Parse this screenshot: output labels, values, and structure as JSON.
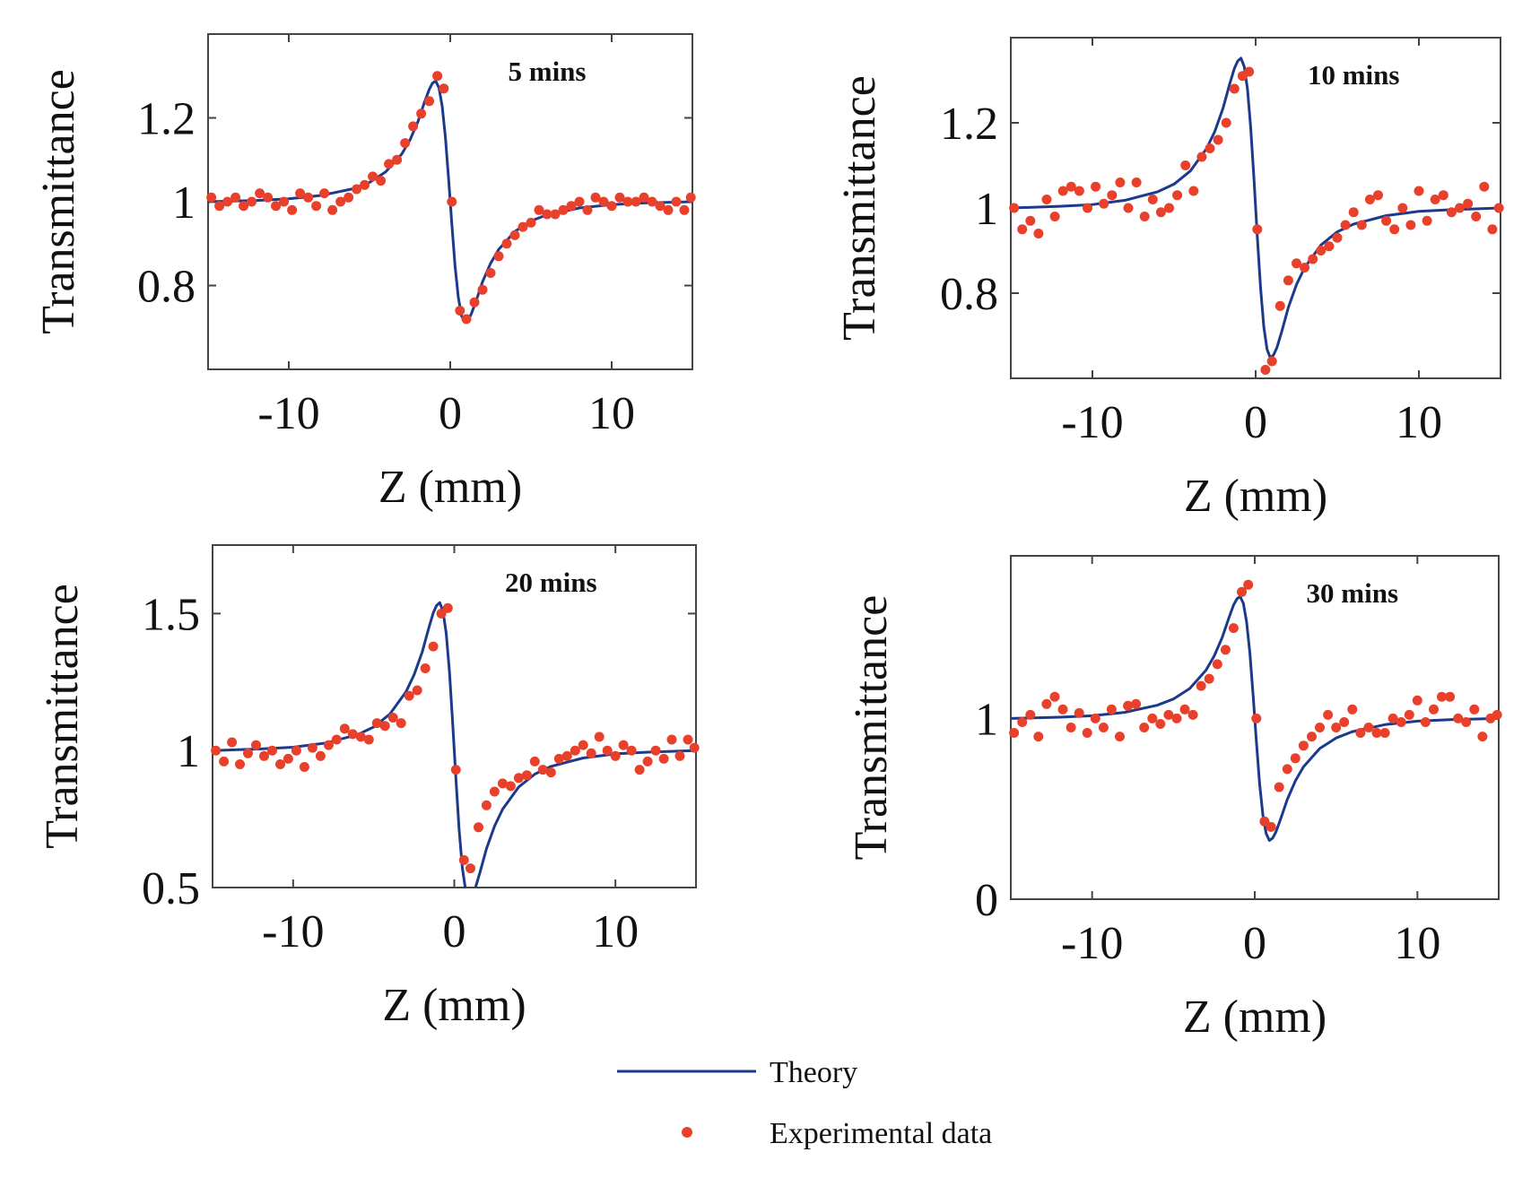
{
  "chart_data": [
    {
      "type": "line",
      "title": "5 mins",
      "xlabel": "Z (mm)",
      "ylabel": "Transmittance",
      "xlim": [
        -15,
        15
      ],
      "ylim": [
        0.6,
        1.4
      ],
      "xticks": [
        -10,
        0,
        10
      ],
      "xtick_labels": [
        "-10",
        "0",
        "10"
      ],
      "yticks": [
        0.8,
        1.0,
        1.2
      ],
      "ytick_labels": [
        "0.8",
        "1",
        "1.2"
      ],
      "grid": false,
      "series": [
        {
          "name": "Theory",
          "kind": "line",
          "color": "#1c3a8c",
          "x": [
            -15,
            -12,
            -10,
            -8,
            -6,
            -5,
            -4,
            -3,
            -2.5,
            -2,
            -1.6,
            -1.3,
            -1.1,
            -0.9,
            -0.7,
            -0.5,
            -0.3,
            -0.1,
            0.1,
            0.3,
            0.5,
            0.7,
            0.9,
            1.1,
            1.3,
            1.6,
            2,
            2.5,
            3,
            4,
            5,
            6,
            8,
            10,
            12,
            15
          ],
          "y": [
            1.0,
            1.003,
            1.007,
            1.015,
            1.031,
            1.046,
            1.071,
            1.114,
            1.147,
            1.191,
            1.237,
            1.268,
            1.283,
            1.288,
            1.272,
            1.228,
            1.154,
            1.054,
            0.946,
            0.846,
            0.772,
            0.728,
            0.712,
            0.717,
            0.732,
            0.763,
            0.809,
            0.853,
            0.886,
            0.929,
            0.954,
            0.969,
            0.985,
            0.993,
            0.997,
            1.0
          ]
        },
        {
          "name": "Experimental data",
          "kind": "scatter",
          "color": "#e8402a",
          "x": [
            -14.8,
            -14.3,
            -13.8,
            -13.3,
            -12.8,
            -12.3,
            -11.8,
            -11.3,
            -10.8,
            -10.3,
            -9.8,
            -9.3,
            -8.8,
            -8.3,
            -7.8,
            -7.3,
            -6.8,
            -6.3,
            -5.8,
            -5.3,
            -4.8,
            -4.3,
            -3.8,
            -3.3,
            -2.8,
            -2.3,
            -1.8,
            -1.3,
            -0.8,
            -0.4,
            0.1,
            0.6,
            1.0,
            1.5,
            2.0,
            2.5,
            3.0,
            3.5,
            4.0,
            4.5,
            5.0,
            5.5,
            6.0,
            6.5,
            7.0,
            7.5,
            8.0,
            8.5,
            9.0,
            9.5,
            10.0,
            10.5,
            11.0,
            11.5,
            12.0,
            12.5,
            13.0,
            13.5,
            14.0,
            14.5,
            14.9
          ],
          "y": [
            1.01,
            0.99,
            1.0,
            1.01,
            0.99,
            1.0,
            1.02,
            1.01,
            0.99,
            1.0,
            0.98,
            1.02,
            1.01,
            0.99,
            1.02,
            0.98,
            1.0,
            1.01,
            1.03,
            1.04,
            1.06,
            1.05,
            1.09,
            1.1,
            1.14,
            1.18,
            1.21,
            1.24,
            1.3,
            1.27,
            1.0,
            0.74,
            0.72,
            0.76,
            0.79,
            0.83,
            0.87,
            0.9,
            0.92,
            0.94,
            0.95,
            0.98,
            0.97,
            0.97,
            0.98,
            0.99,
            1.0,
            0.98,
            1.01,
            1.0,
            0.99,
            1.01,
            1.0,
            1.0,
            1.01,
            1.0,
            0.99,
            0.98,
            1.0,
            0.98,
            1.01
          ]
        }
      ]
    },
    {
      "type": "line",
      "title": "10 mins",
      "xlabel": "Z (mm)",
      "ylabel": "Transmittance",
      "xlim": [
        -15,
        15
      ],
      "ylim": [
        0.6,
        1.4
      ],
      "xticks": [
        -10,
        0,
        10
      ],
      "xtick_labels": [
        "-10",
        "0",
        "10"
      ],
      "yticks": [
        0.8,
        1.0,
        1.2
      ],
      "ytick_labels": [
        "0.8",
        "1",
        "1.2"
      ],
      "grid": false,
      "series": [
        {
          "name": "Theory",
          "kind": "line",
          "color": "#1c3a8c",
          "x": [
            -15,
            -12,
            -10,
            -8,
            -6,
            -5,
            -4,
            -3,
            -2.5,
            -2,
            -1.6,
            -1.3,
            -1.1,
            -0.9,
            -0.7,
            -0.5,
            -0.3,
            -0.1,
            0.1,
            0.3,
            0.5,
            0.7,
            0.9,
            1.1,
            1.3,
            1.6,
            2,
            2.5,
            3,
            4,
            5,
            6,
            8,
            10,
            12,
            15
          ],
          "y": [
            1.0,
            1.004,
            1.008,
            1.018,
            1.038,
            1.056,
            1.087,
            1.14,
            1.18,
            1.234,
            1.29,
            1.328,
            1.345,
            1.352,
            1.332,
            1.279,
            1.188,
            1.066,
            0.934,
            0.812,
            0.721,
            0.668,
            0.648,
            0.655,
            0.672,
            0.71,
            0.766,
            0.82,
            0.86,
            0.913,
            0.944,
            0.962,
            0.982,
            0.992,
            0.996,
            1.0
          ]
        },
        {
          "name": "Experimental data",
          "kind": "scatter",
          "color": "#e8402a",
          "x": [
            -14.8,
            -14.3,
            -13.8,
            -13.3,
            -12.8,
            -12.3,
            -11.8,
            -11.3,
            -10.8,
            -10.3,
            -9.8,
            -9.3,
            -8.8,
            -8.3,
            -7.8,
            -7.3,
            -6.8,
            -6.3,
            -5.8,
            -5.3,
            -4.8,
            -4.3,
            -3.8,
            -3.3,
            -2.8,
            -2.3,
            -1.8,
            -1.3,
            -0.8,
            -0.4,
            0.1,
            0.6,
            1.0,
            1.5,
            2.0,
            2.5,
            3.0,
            3.5,
            4.0,
            4.5,
            5.0,
            5.5,
            6.0,
            6.5,
            7.0,
            7.5,
            8.0,
            8.5,
            9.0,
            9.5,
            10.0,
            10.5,
            11.0,
            11.5,
            12.0,
            12.5,
            13.0,
            13.5,
            14.0,
            14.5,
            14.9
          ],
          "y": [
            1.0,
            0.95,
            0.97,
            0.94,
            1.02,
            0.98,
            1.04,
            1.05,
            1.04,
            1.0,
            1.05,
            1.01,
            1.03,
            1.06,
            1.0,
            1.06,
            0.98,
            1.02,
            0.99,
            1.0,
            1.03,
            1.1,
            1.04,
            1.12,
            1.14,
            1.16,
            1.2,
            1.28,
            1.31,
            1.32,
            0.95,
            0.62,
            0.64,
            0.77,
            0.83,
            0.87,
            0.86,
            0.88,
            0.9,
            0.91,
            0.93,
            0.96,
            0.99,
            0.96,
            1.02,
            1.03,
            0.97,
            0.95,
            1.0,
            0.96,
            1.04,
            0.97,
            1.02,
            1.03,
            0.99,
            1.0,
            1.01,
            0.98,
            1.05,
            0.95,
            1.0
          ]
        }
      ]
    },
    {
      "type": "line",
      "title": "20 mins",
      "xlabel": "Z (mm)",
      "ylabel": "Transmittance",
      "xlim": [
        -15,
        15
      ],
      "ylim": [
        0.5,
        1.75
      ],
      "xticks": [
        -10,
        0,
        10
      ],
      "xtick_labels": [
        "-10",
        "0",
        "10"
      ],
      "yticks": [
        0.5,
        1.0,
        1.5
      ],
      "ytick_labels": [
        "0.5",
        "1",
        "1.5"
      ],
      "grid": false,
      "series": [
        {
          "name": "Theory",
          "kind": "line",
          "color": "#1c3a8c",
          "x": [
            -15,
            -12,
            -10,
            -8,
            -6,
            -5,
            -4,
            -3,
            -2.5,
            -2,
            -1.6,
            -1.3,
            -1.1,
            -0.9,
            -0.7,
            -0.5,
            -0.3,
            -0.1,
            0.1,
            0.3,
            0.5,
            0.7,
            0.9,
            1.1,
            1.3,
            1.6,
            2,
            2.5,
            3,
            4,
            5,
            6,
            8,
            10,
            12,
            15
          ],
          "y": [
            1.0,
            1.006,
            1.012,
            1.027,
            1.058,
            1.086,
            1.133,
            1.214,
            1.276,
            1.358,
            1.444,
            1.503,
            1.529,
            1.54,
            1.509,
            1.428,
            1.289,
            1.101,
            0.899,
            0.711,
            0.572,
            0.491,
            0.46,
            0.471,
            0.497,
            0.556,
            0.642,
            0.724,
            0.786,
            0.867,
            0.914,
            0.942,
            0.973,
            0.988,
            0.994,
            1.0
          ]
        },
        {
          "name": "Experimental data",
          "kind": "scatter",
          "color": "#e8402a",
          "x": [
            -14.8,
            -14.3,
            -13.8,
            -13.3,
            -12.8,
            -12.3,
            -11.8,
            -11.3,
            -10.8,
            -10.3,
            -9.8,
            -9.3,
            -8.8,
            -8.3,
            -7.8,
            -7.3,
            -6.8,
            -6.3,
            -5.8,
            -5.3,
            -4.8,
            -4.3,
            -3.8,
            -3.3,
            -2.8,
            -2.3,
            -1.8,
            -1.3,
            -0.8,
            -0.4,
            0.1,
            0.6,
            1.0,
            1.5,
            2.0,
            2.5,
            3.0,
            3.5,
            4.0,
            4.5,
            5.0,
            5.5,
            6.0,
            6.5,
            7.0,
            7.5,
            8.0,
            8.5,
            9.0,
            9.5,
            10.0,
            10.5,
            11.0,
            11.5,
            12.0,
            12.5,
            13.0,
            13.5,
            14.0,
            14.5,
            14.9
          ],
          "y": [
            1.0,
            0.96,
            1.03,
            0.95,
            0.99,
            1.02,
            0.98,
            1.0,
            0.95,
            0.97,
            1.0,
            0.94,
            1.01,
            0.98,
            1.02,
            1.04,
            1.08,
            1.06,
            1.05,
            1.04,
            1.1,
            1.09,
            1.12,
            1.1,
            1.2,
            1.22,
            1.3,
            1.38,
            1.5,
            1.52,
            0.93,
            0.6,
            0.57,
            0.72,
            0.8,
            0.85,
            0.88,
            0.87,
            0.9,
            0.91,
            0.96,
            0.93,
            0.92,
            0.97,
            0.98,
            1.0,
            1.02,
            0.99,
            1.05,
            1.0,
            0.98,
            1.02,
            1.0,
            0.93,
            0.96,
            1.0,
            0.97,
            1.04,
            0.98,
            1.04,
            1.01
          ]
        }
      ]
    },
    {
      "type": "line",
      "title": "30 mins",
      "xlabel": "Z (mm)",
      "ylabel": "Transmittance",
      "xlim": [
        -15,
        15
      ],
      "ylim": [
        0,
        1.9
      ],
      "xticks": [
        -10,
        0,
        10
      ],
      "xtick_labels": [
        "-10",
        "0",
        "10"
      ],
      "yticks": [
        0,
        1
      ],
      "ytick_labels": [
        "0",
        "1"
      ],
      "grid": false,
      "series": [
        {
          "name": "Theory",
          "kind": "line",
          "color": "#1c3a8c",
          "x": [
            -15,
            -12,
            -10,
            -8,
            -6,
            -5,
            -4,
            -3,
            -2.5,
            -2,
            -1.6,
            -1.3,
            -1.1,
            -0.9,
            -0.7,
            -0.5,
            -0.3,
            -0.1,
            0.1,
            0.3,
            0.5,
            0.7,
            0.9,
            1.1,
            1.3,
            1.6,
            2,
            2.5,
            3,
            4,
            5,
            6,
            8,
            10,
            12,
            15
          ],
          "y": [
            1.0,
            1.007,
            1.015,
            1.034,
            1.073,
            1.108,
            1.166,
            1.267,
            1.345,
            1.448,
            1.554,
            1.628,
            1.662,
            1.675,
            1.637,
            1.535,
            1.361,
            1.126,
            0.874,
            0.639,
            0.465,
            0.363,
            0.325,
            0.338,
            0.372,
            0.446,
            0.552,
            0.655,
            0.733,
            0.834,
            0.892,
            0.927,
            0.966,
            0.985,
            0.993,
            1.0
          ]
        },
        {
          "name": "Experimental data",
          "kind": "scatter",
          "color": "#e8402a",
          "x": [
            -14.8,
            -14.3,
            -13.8,
            -13.3,
            -12.8,
            -12.3,
            -11.8,
            -11.3,
            -10.8,
            -10.3,
            -9.8,
            -9.3,
            -8.8,
            -8.3,
            -7.8,
            -7.3,
            -6.8,
            -6.3,
            -5.8,
            -5.3,
            -4.8,
            -4.3,
            -3.8,
            -3.3,
            -2.8,
            -2.3,
            -1.8,
            -1.3,
            -0.8,
            -0.4,
            0.1,
            0.6,
            1.0,
            1.5,
            2.0,
            2.5,
            3.0,
            3.5,
            4.0,
            4.5,
            5.0,
            5.5,
            6.0,
            6.5,
            7.0,
            7.5,
            8.0,
            8.5,
            9.0,
            9.5,
            10.0,
            10.5,
            11.0,
            11.5,
            12.0,
            12.5,
            13.0,
            13.5,
            14.0,
            14.5,
            14.9
          ],
          "y": [
            0.92,
            0.98,
            1.02,
            0.9,
            1.08,
            1.12,
            1.05,
            0.95,
            1.03,
            0.92,
            1.0,
            0.95,
            1.05,
            0.9,
            1.07,
            1.08,
            0.95,
            1.0,
            0.97,
            1.02,
            1.0,
            1.05,
            1.02,
            1.18,
            1.22,
            1.3,
            1.38,
            1.5,
            1.7,
            1.74,
            1.0,
            0.43,
            0.4,
            0.62,
            0.72,
            0.78,
            0.85,
            0.9,
            0.95,
            1.02,
            0.95,
            0.98,
            1.05,
            0.92,
            0.95,
            0.92,
            0.92,
            1.0,
            0.98,
            1.02,
            1.1,
            0.98,
            1.05,
            1.12,
            1.12,
            1.0,
            0.98,
            1.05,
            0.9,
            1.0,
            1.02
          ]
        }
      ]
    }
  ],
  "legend": {
    "items": [
      {
        "label": "Theory",
        "kind": "line",
        "color": "#1c3a8c"
      },
      {
        "label": "Experimental data",
        "kind": "marker",
        "color": "#e8402a"
      }
    ]
  }
}
